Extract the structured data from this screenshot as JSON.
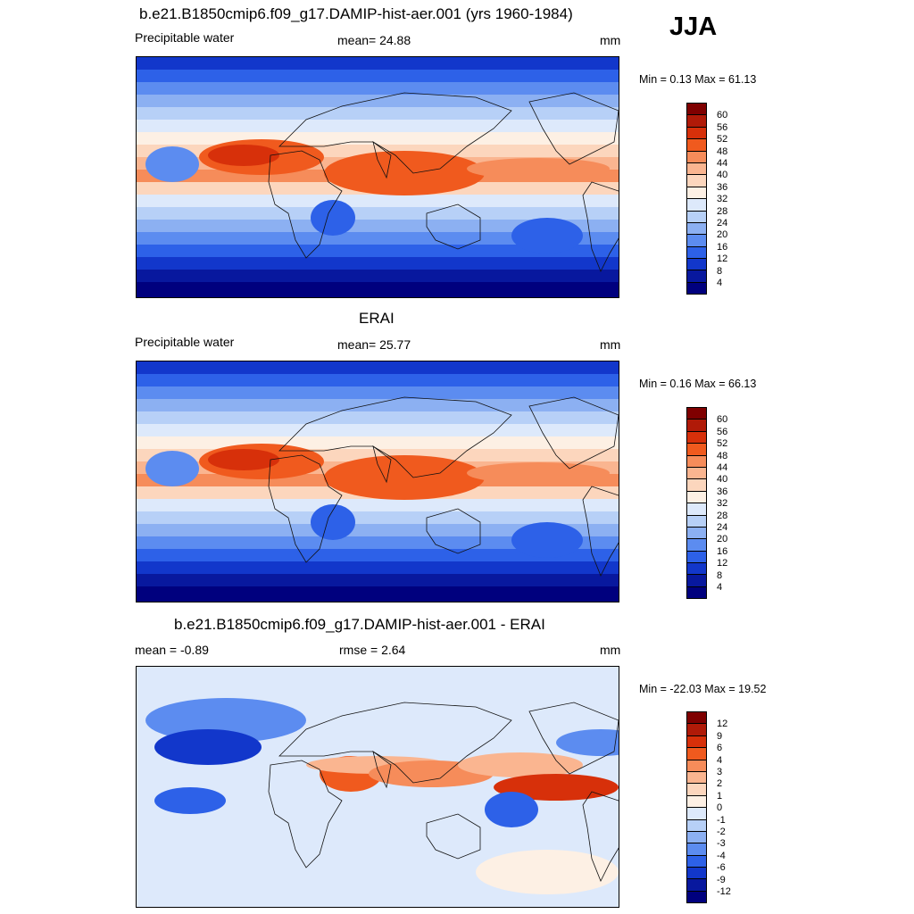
{
  "season": "JJA",
  "panels": [
    {
      "title": "b.e21.B1850cmip6.f09_g17.DAMIP-hist-aer.001 (yrs 1960-1984)",
      "left_label": "Precipitable water",
      "center_label": "mean=  24.88",
      "units": "mm",
      "minmax": "Min =   0.13 Max =  61.13",
      "colorbar": {
        "labels": [
          "60",
          "56",
          "52",
          "48",
          "44",
          "40",
          "36",
          "32",
          "28",
          "24",
          "20",
          "16",
          "12",
          "8",
          "4"
        ],
        "colors": [
          "#7f0000",
          "#b01a08",
          "#d7300a",
          "#f05a1e",
          "#f68c5a",
          "#fab590",
          "#fcd6bd",
          "#fdf0e4",
          "#dde9fb",
          "#b7d0f7",
          "#8cb0f2",
          "#5c8cf0",
          "#2d61e8",
          "#1237cb",
          "#08189e",
          "#00007e"
        ]
      },
      "map_style": "absolute"
    },
    {
      "title": "ERAI",
      "left_label": "Precipitable water",
      "center_label": "mean=  25.77",
      "units": "mm",
      "minmax": "Min =   0.16 Max =  66.13",
      "colorbar": {
        "labels": [
          "60",
          "56",
          "52",
          "48",
          "44",
          "40",
          "36",
          "32",
          "28",
          "24",
          "20",
          "16",
          "12",
          "8",
          "4"
        ],
        "colors": [
          "#7f0000",
          "#b01a08",
          "#d7300a",
          "#f05a1e",
          "#f68c5a",
          "#fab590",
          "#fcd6bd",
          "#fdf0e4",
          "#dde9fb",
          "#b7d0f7",
          "#8cb0f2",
          "#5c8cf0",
          "#2d61e8",
          "#1237cb",
          "#08189e",
          "#00007e"
        ]
      },
      "map_style": "absolute"
    },
    {
      "title": "b.e21.B1850cmip6.f09_g17.DAMIP-hist-aer.001 - ERAI",
      "left_label": "mean =  -0.89",
      "center_label": "rmse =   2.64",
      "units": "mm",
      "minmax": "Min = -22.03 Max =  19.52",
      "colorbar": {
        "labels": [
          "12",
          "9",
          "6",
          "4",
          "3",
          "2",
          "1",
          "0",
          "-1",
          "-2",
          "-3",
          "-4",
          "-6",
          "-9",
          "-12"
        ],
        "colors": [
          "#7f0000",
          "#b01a08",
          "#d7300a",
          "#f05a1e",
          "#f68c5a",
          "#fab590",
          "#fcd6bd",
          "#fdf0e4",
          "#dde9fb",
          "#b7d0f7",
          "#8cb0f2",
          "#5c8cf0",
          "#2d61e8",
          "#1237cb",
          "#08189e",
          "#00007e"
        ]
      },
      "map_style": "difference"
    }
  ]
}
